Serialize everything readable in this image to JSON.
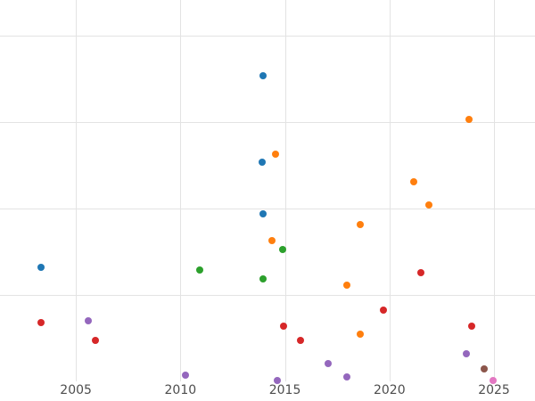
{
  "chart_data": {
    "type": "scatter",
    "title": "",
    "xlabel": "",
    "ylabel": "",
    "xlim": [
      2001.37,
      2026.96
    ],
    "ylim": [
      0,
      4.41
    ],
    "grid": true,
    "legend": "none",
    "x_ticks": [
      2005,
      2010,
      2015,
      2020,
      2025
    ],
    "x_tick_labels": [
      "2005",
      "2010",
      "2015",
      "2020",
      "2025"
    ],
    "y_gridline_values": [
      1,
      2,
      3,
      4
    ],
    "colors": {
      "grid": "#e3e3e3",
      "tick_label": "#4d4d4d",
      "background": "#ffffff"
    },
    "series": [
      {
        "name": "series-blue",
        "color": "#1f77b4",
        "points": [
          {
            "x": 2003.33,
            "y": 1.32
          },
          {
            "x": 2013.95,
            "y": 3.53
          },
          {
            "x": 2013.91,
            "y": 2.53
          },
          {
            "x": 2013.95,
            "y": 1.94
          }
        ]
      },
      {
        "name": "series-orange",
        "color": "#ff7f0e",
        "points": [
          {
            "x": 2014.38,
            "y": 1.63
          },
          {
            "x": 2014.55,
            "y": 2.63
          },
          {
            "x": 2017.96,
            "y": 1.11
          },
          {
            "x": 2018.6,
            "y": 1.81
          },
          {
            "x": 2018.6,
            "y": 0.55
          },
          {
            "x": 2021.16,
            "y": 2.31
          },
          {
            "x": 2021.88,
            "y": 2.04
          },
          {
            "x": 2023.8,
            "y": 3.03
          }
        ]
      },
      {
        "name": "series-green",
        "color": "#2ca02c",
        "points": [
          {
            "x": 2010.92,
            "y": 1.29
          },
          {
            "x": 2013.95,
            "y": 1.18
          },
          {
            "x": 2014.89,
            "y": 1.52
          }
        ]
      },
      {
        "name": "series-red",
        "color": "#d62728",
        "points": [
          {
            "x": 2003.33,
            "y": 0.68
          },
          {
            "x": 2005.93,
            "y": 0.47
          },
          {
            "x": 2014.93,
            "y": 0.64
          },
          {
            "x": 2015.74,
            "y": 0.47
          },
          {
            "x": 2019.71,
            "y": 0.82
          },
          {
            "x": 2021.5,
            "y": 1.26
          },
          {
            "x": 2023.93,
            "y": 0.64
          }
        ]
      },
      {
        "name": "series-purple",
        "color": "#9467bd",
        "points": [
          {
            "x": 2005.59,
            "y": 0.7
          },
          {
            "x": 2010.24,
            "y": 0.07
          },
          {
            "x": 2014.63,
            "y": 0.01
          },
          {
            "x": 2017.06,
            "y": 0.21
          },
          {
            "x": 2017.96,
            "y": 0.05
          },
          {
            "x": 2023.67,
            "y": 0.32
          }
        ]
      },
      {
        "name": "series-brown",
        "color": "#8c564b",
        "points": [
          {
            "x": 2024.53,
            "y": 0.14
          }
        ]
      },
      {
        "name": "series-pink",
        "color": "#e377c2",
        "points": [
          {
            "x": 2024.95,
            "y": 0.01
          }
        ]
      }
    ]
  }
}
